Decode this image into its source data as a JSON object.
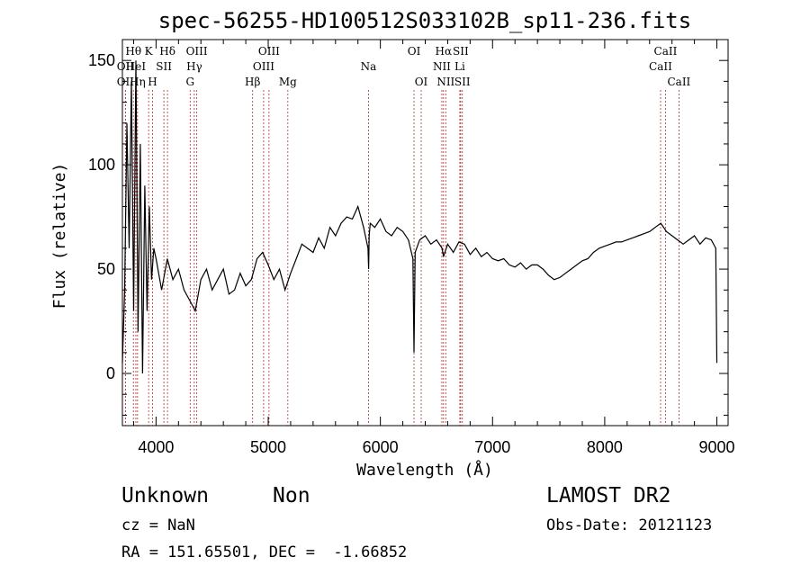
{
  "chart_data": {
    "type": "line",
    "title": "spec-56255-HD100512S033102B_sp11-236.fits",
    "xlabel": "Wavelength (Å)",
    "ylabel": "Flux (relative)",
    "xlim": [
      3700,
      9100
    ],
    "ylim": [
      -25,
      160
    ],
    "xticks": [
      4000,
      5000,
      6000,
      7000,
      8000,
      9000
    ],
    "yticks": [
      0,
      50,
      100,
      150
    ],
    "grid": false,
    "series": [
      {
        "x": [
          3700,
          3720,
          3740,
          3760,
          3780,
          3800,
          3820,
          3840,
          3860,
          3880,
          3900,
          3920,
          3940,
          3960,
          3980,
          4000,
          4050,
          4100,
          4150,
          4200,
          4250,
          4300,
          4350,
          4400,
          4450,
          4500,
          4550,
          4600,
          4650,
          4700,
          4750,
          4800,
          4850,
          4900,
          4950,
          5000,
          5050,
          5100,
          5150,
          5200,
          5250,
          5300,
          5350,
          5400,
          5450,
          5500,
          5550,
          5600,
          5650,
          5700,
          5750,
          5800,
          5850,
          5890,
          5895,
          5900,
          5910,
          5950,
          6000,
          6050,
          6100,
          6150,
          6200,
          6250,
          6290,
          6300,
          6310,
          6350,
          6400,
          6450,
          6500,
          6550,
          6563,
          6600,
          6650,
          6700,
          6750,
          6800,
          6850,
          6900,
          6950,
          7000,
          7050,
          7100,
          7150,
          7200,
          7250,
          7300,
          7350,
          7400,
          7450,
          7500,
          7550,
          7600,
          7650,
          7700,
          7750,
          7800,
          7850,
          7900,
          7950,
          8000,
          8050,
          8100,
          8150,
          8200,
          8250,
          8300,
          8350,
          8400,
          8450,
          8500,
          8550,
          8600,
          8650,
          8700,
          8750,
          8800,
          8850,
          8900,
          8950,
          8990,
          9000
        ],
        "y": [
          5,
          40,
          120,
          60,
          140,
          30,
          150,
          20,
          110,
          0,
          90,
          30,
          80,
          45,
          60,
          55,
          40,
          55,
          45,
          50,
          40,
          35,
          30,
          45,
          50,
          40,
          45,
          50,
          38,
          40,
          48,
          42,
          45,
          55,
          58,
          52,
          45,
          50,
          40,
          48,
          55,
          62,
          60,
          58,
          65,
          60,
          70,
          66,
          72,
          75,
          74,
          80,
          70,
          60,
          50,
          66,
          72,
          70,
          74,
          68,
          66,
          70,
          68,
          64,
          55,
          10,
          58,
          64,
          66,
          62,
          64,
          60,
          56,
          62,
          58,
          63,
          62,
          57,
          60,
          56,
          58,
          55,
          54,
          55,
          52,
          51,
          53,
          50,
          52,
          52,
          50,
          47,
          45,
          46,
          48,
          50,
          52,
          54,
          55,
          58,
          60,
          61,
          62,
          63,
          63,
          64,
          65,
          66,
          67,
          68,
          70,
          72,
          68,
          66,
          64,
          62,
          64,
          66,
          62,
          65,
          64,
          60,
          5
        ]
      }
    ],
    "line_markers": [
      {
        "label": "OII",
        "x": 3727,
        "row": 2
      },
      {
        "label": "OII",
        "x": 3727,
        "row": 3
      },
      {
        "label": "Hθ",
        "x": 3798,
        "row": 1
      },
      {
        "label": "HeI",
        "x": 3820,
        "row": 2
      },
      {
        "label": "Hη",
        "x": 3835,
        "row": 3
      },
      {
        "label": "K",
        "x": 3934,
        "row": 1
      },
      {
        "label": "H",
        "x": 3969,
        "row": 3
      },
      {
        "label": "SII",
        "x": 4070,
        "row": 2
      },
      {
        "label": "Hδ",
        "x": 4102,
        "row": 1
      },
      {
        "label": "G",
        "x": 4304,
        "row": 3
      },
      {
        "label": "OIII",
        "x": 4363,
        "row": 1
      },
      {
        "label": "Hγ",
        "x": 4341,
        "row": 2
      },
      {
        "label": "Hβ",
        "x": 4861,
        "row": 3
      },
      {
        "label": "OIII",
        "x": 4959,
        "row": 2
      },
      {
        "label": "OIII",
        "x": 5007,
        "row": 1
      },
      {
        "label": "Mg",
        "x": 5175,
        "row": 3
      },
      {
        "label": "Na",
        "x": 5894,
        "row": 2
      },
      {
        "label": "OI",
        "x": 6300,
        "row": 1
      },
      {
        "label": "OI",
        "x": 6364,
        "row": 3
      },
      {
        "label": "NII",
        "x": 6548,
        "row": 2
      },
      {
        "label": "Hα",
        "x": 6563,
        "row": 1
      },
      {
        "label": "NII",
        "x": 6583,
        "row": 3
      },
      {
        "label": "SII",
        "x": 6716,
        "row": 1
      },
      {
        "label": "Li",
        "x": 6708,
        "row": 2
      },
      {
        "label": "SII",
        "x": 6731,
        "row": 3
      },
      {
        "label": "CaII",
        "x": 8498,
        "row": 2
      },
      {
        "label": "CaII",
        "x": 8542,
        "row": 1
      },
      {
        "label": "CaII",
        "x": 8662,
        "row": 3
      }
    ]
  },
  "info": {
    "class_label": "Unknown",
    "subclass_label": "Non",
    "survey_label": "LAMOST DR2",
    "redshift_text": "cz = NaN",
    "obs_date_text": "Obs-Date: 20121123",
    "coords_text": "RA = 151.65501, DEC =  -1.66852"
  }
}
